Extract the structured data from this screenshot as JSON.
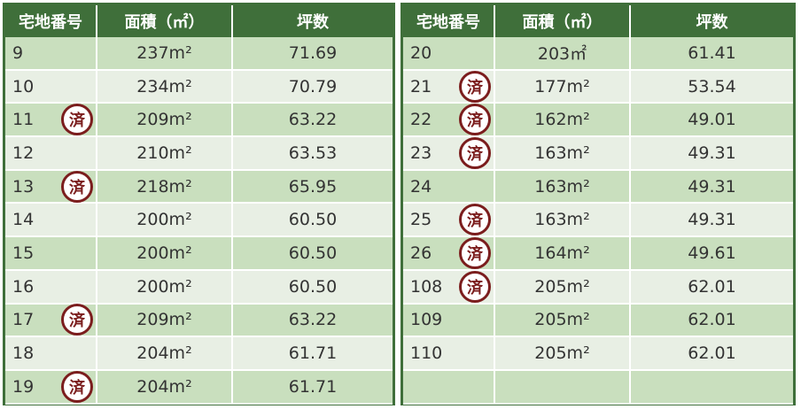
{
  "headers": {
    "lot": "宅地番号",
    "area": "面積（㎡）",
    "tsubo": "坪数"
  },
  "sold_label": "済",
  "left_rows": [
    {
      "lot": "9",
      "area": "237m²",
      "tsubo": "71.69",
      "sold": false
    },
    {
      "lot": "10",
      "area": "234m²",
      "tsubo": "70.79",
      "sold": false
    },
    {
      "lot": "11",
      "area": "209m²",
      "tsubo": "63.22",
      "sold": true
    },
    {
      "lot": "12",
      "area": "210m²",
      "tsubo": "63.53",
      "sold": false
    },
    {
      "lot": "13",
      "area": "218m²",
      "tsubo": "65.95",
      "sold": true
    },
    {
      "lot": "14",
      "area": "200m²",
      "tsubo": "60.50",
      "sold": false
    },
    {
      "lot": "15",
      "area": "200m²",
      "tsubo": "60.50",
      "sold": false
    },
    {
      "lot": "16",
      "area": "200m²",
      "tsubo": "60.50",
      "sold": false
    },
    {
      "lot": "17",
      "area": "209m²",
      "tsubo": "63.22",
      "sold": true
    },
    {
      "lot": "18",
      "area": "204m²",
      "tsubo": "61.71",
      "sold": false
    },
    {
      "lot": "19",
      "area": "204m²",
      "tsubo": "61.71",
      "sold": true
    }
  ],
  "right_rows": [
    {
      "lot": "20",
      "area": "203㎡",
      "tsubo": "61.41",
      "sold": false
    },
    {
      "lot": "21",
      "area": "177m²",
      "tsubo": "53.54",
      "sold": true
    },
    {
      "lot": "22",
      "area": "162m²",
      "tsubo": "49.01",
      "sold": true
    },
    {
      "lot": "23",
      "area": "163m²",
      "tsubo": "49.31",
      "sold": true
    },
    {
      "lot": "24",
      "area": "163m²",
      "tsubo": "49.31",
      "sold": false
    },
    {
      "lot": "25",
      "area": "163m²",
      "tsubo": "49.31",
      "sold": true
    },
    {
      "lot": "26",
      "area": "164m²",
      "tsubo": "49.61",
      "sold": true
    },
    {
      "lot": "108",
      "area": "205m²",
      "tsubo": "62.01",
      "sold": true
    },
    {
      "lot": "109",
      "area": "205m²",
      "tsubo": "62.01",
      "sold": false
    },
    {
      "lot": "110",
      "area": "205m²",
      "tsubo": "62.01",
      "sold": false
    },
    {
      "lot": "",
      "area": "",
      "tsubo": "",
      "sold": false
    }
  ]
}
